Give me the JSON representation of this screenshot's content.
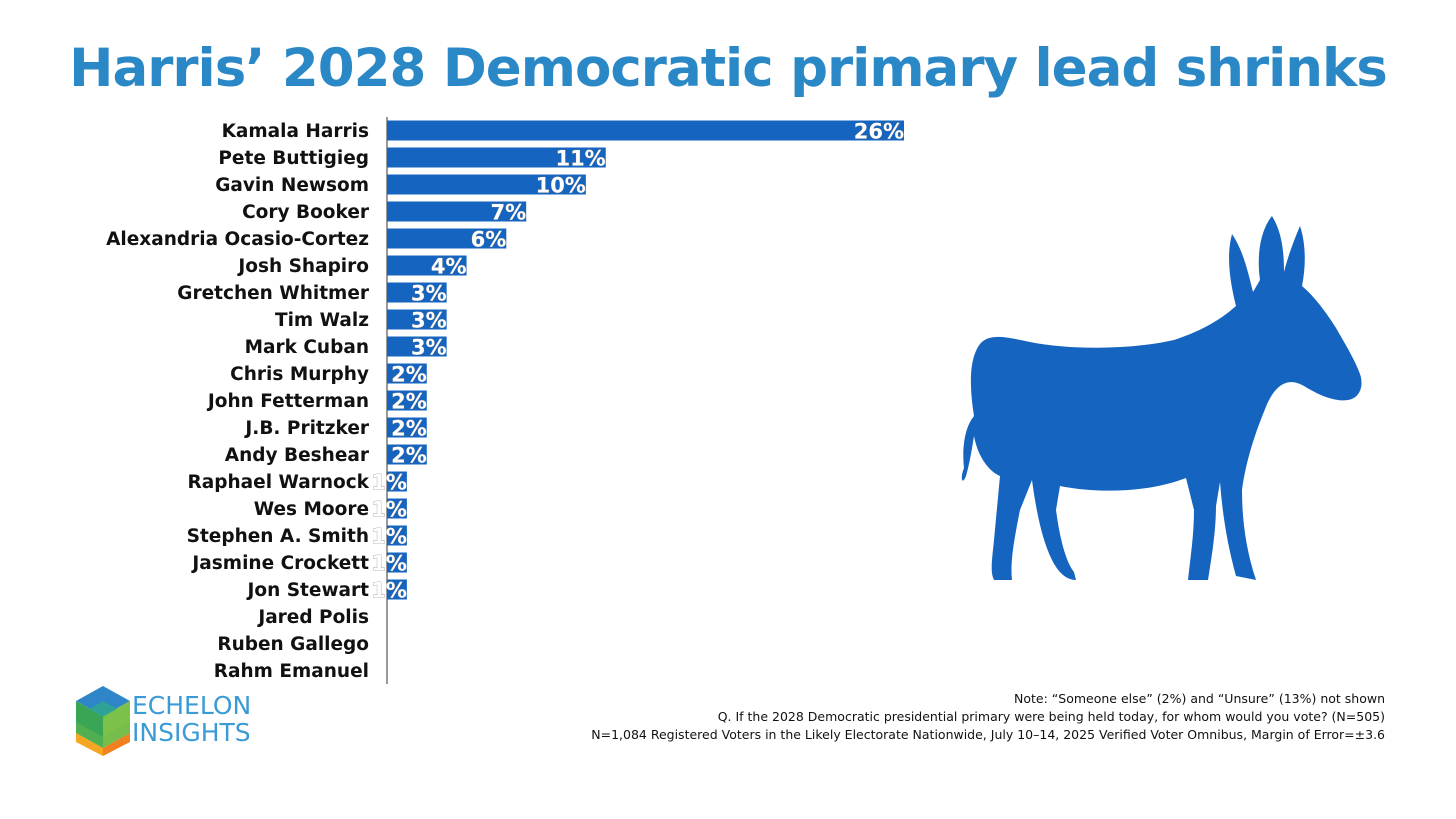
{
  "title": "Harris’ 2028 Democratic primary lead shrinks",
  "chart_data": {
    "type": "bar",
    "orientation": "horizontal",
    "title": "Harris’ 2028 Democratic primary lead shrinks",
    "categories": [
      "Kamala Harris",
      "Pete Buttigieg",
      "Gavin Newsom",
      "Cory Booker",
      "Alexandria Ocasio-Cortez",
      "Josh Shapiro",
      "Gretchen Whitmer",
      "Tim Walz",
      "Mark Cuban",
      "Chris Murphy",
      "John Fetterman",
      "J.B. Pritzker",
      "Andy Beshear",
      "Raphael Warnock",
      "Wes Moore",
      "Stephen A. Smith",
      "Jasmine Crockett",
      "Jon Stewart",
      "Jared Polis",
      "Ruben Gallego",
      "Rahm Emanuel"
    ],
    "values": [
      26,
      11,
      10,
      7,
      6,
      4,
      3,
      3,
      3,
      2,
      2,
      2,
      2,
      1,
      1,
      1,
      1,
      1,
      0,
      0,
      0
    ],
    "value_labels": [
      "26%",
      "11%",
      "10%",
      "7%",
      "6%",
      "4%",
      "3%",
      "3%",
      "3%",
      "2%",
      "2%",
      "2%",
      "2%",
      "1%",
      "1%",
      "1%",
      "1%",
      "1%",
      "",
      "",
      ""
    ],
    "unit": "%",
    "xlim": [
      0,
      30
    ],
    "bar_color": "#1565c0",
    "xlabel": "",
    "ylabel": ""
  },
  "colors": {
    "title": "#2b88c6",
    "bar": "#1565c0",
    "donkey": "#1565c0",
    "logo_text": "#3a9bd5"
  },
  "logo": {
    "line1": "ECHELON",
    "line2": "INSIGHTS"
  },
  "notes": {
    "line1": "Note: “Someone else” (2%) and “Unsure” (13%) not shown",
    "line2": "Q. If the 2028 Democratic presidential primary were being held today, for whom would you vote? (N=505)",
    "line3": "N=1,084 Registered Voters in the Likely Electorate Nationwide, July 10–14, 2025 Verified Voter Omnibus, Margin of Error=±3.6"
  },
  "icons": [
    "democratic-donkey-icon",
    "echelon-cube-logo-icon"
  ]
}
